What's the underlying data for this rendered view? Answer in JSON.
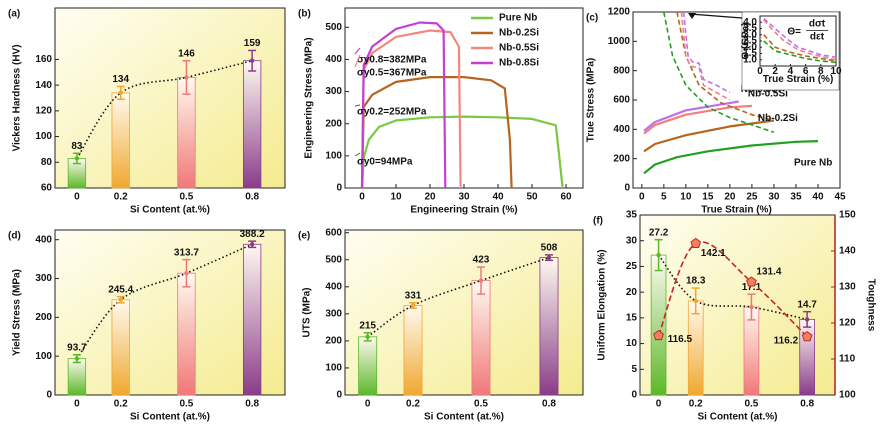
{
  "chart_data": [
    {
      "type": "bar",
      "label": "(a)",
      "ylabel": "Vickers Hardness (HV)",
      "xlabel": "Si Content (at.%)",
      "x": [
        0,
        0.2,
        0.5,
        0.8
      ],
      "xlim": [
        -0.1,
        0.95
      ],
      "xticks": [
        0,
        0.2,
        0.5,
        0.8
      ],
      "ylim": [
        60,
        200
      ],
      "yticks": [
        60,
        80,
        100,
        120,
        140,
        160
      ],
      "background": "#f4eb8e",
      "trend": true,
      "series": [
        {
          "values": [
            83,
            134,
            146,
            159
          ],
          "errors": [
            4,
            5,
            13,
            8
          ],
          "colors": [
            "#5cb82a",
            "#f0a830",
            "#f07878",
            "#8a3c8a"
          ]
        }
      ]
    },
    {
      "type": "line",
      "label": "(b)",
      "ylabel": "Engineering Stress (MPa)",
      "xlabel": "Engineering Strain (%)",
      "xlim": [
        -5,
        65
      ],
      "xticks": [
        0,
        10,
        20,
        30,
        40,
        50,
        60
      ],
      "ylim": [
        0,
        560
      ],
      "yticks": [
        0,
        100,
        200,
        300,
        400,
        500
      ],
      "legend": "upper right",
      "series": [
        {
          "name": "Pure Nb",
          "color": "#7ac943",
          "x": [
            0,
            0.5,
            2,
            5,
            10,
            20,
            30,
            40,
            50,
            57,
            58,
            59
          ],
          "values": [
            0,
            94,
            150,
            190,
            210,
            220,
            222,
            220,
            215,
            195,
            100,
            0
          ]
        },
        {
          "name": "Nb-0.2Si",
          "color": "#b5651d",
          "x": [
            0,
            0.5,
            3,
            10,
            20,
            30,
            38,
            42,
            43.5,
            44
          ],
          "values": [
            0,
            252,
            290,
            330,
            345,
            345,
            335,
            310,
            150,
            0
          ]
        },
        {
          "name": "Nb-0.5Si",
          "color": "#f4877f",
          "x": [
            0,
            0.5,
            3,
            10,
            20,
            26,
            28.5,
            29
          ],
          "values": [
            0,
            367,
            420,
            470,
            490,
            485,
            440,
            0
          ]
        },
        {
          "name": "Nb-0.8Si",
          "color": "#c33fd6",
          "x": [
            0,
            0.5,
            3,
            10,
            17,
            22,
            24,
            24.5
          ],
          "values": [
            0,
            382,
            440,
            495,
            515,
            512,
            490,
            0
          ]
        }
      ],
      "annotations": [
        {
          "text": "σy0.8=382MPa",
          "color": "#c33fd6"
        },
        {
          "text": "σy0.5=367MPa",
          "color": "#f4877f"
        },
        {
          "text": "σy0.2=252MPa",
          "color": "#b5651d"
        },
        {
          "text": "σy0=94MPa",
          "color": "#5a9e2a"
        }
      ]
    },
    {
      "type": "line",
      "label": "(c)",
      "ylabel": "True Stress (MPa)",
      "xlabel": "True Strain (%)",
      "xlim": [
        -2,
        45
      ],
      "xticks": [
        0,
        5,
        10,
        15,
        20,
        25,
        30,
        35,
        40,
        45
      ],
      "ylim": [
        0,
        1200
      ],
      "yticks": [
        0,
        200,
        400,
        600,
        800,
        1000,
        1200
      ],
      "series": [
        {
          "name": "Pure Nb",
          "color": "#22a022",
          "x": [
            0.5,
            3,
            8,
            15,
            25,
            35,
            40
          ],
          "values": [
            100,
            160,
            210,
            250,
            290,
            315,
            320
          ]
        },
        {
          "name": "Nb-0.2Si",
          "color": "#b5651d",
          "x": [
            0.5,
            3,
            10,
            20,
            30
          ],
          "values": [
            250,
            300,
            360,
            420,
            460
          ]
        },
        {
          "name": "Nb-0.5Si",
          "color": "#f08080",
          "x": [
            0.5,
            3,
            10,
            20,
            25
          ],
          "values": [
            370,
            430,
            500,
            550,
            560
          ]
        },
        {
          "name": "Nb-0.8Si",
          "color": "#c070e8",
          "x": [
            0.5,
            3,
            10,
            18,
            22
          ],
          "values": [
            390,
            450,
            530,
            570,
            590
          ]
        },
        {
          "color": "#22a022",
          "style": "dashed",
          "x": [
            5,
            7,
            10,
            15,
            20,
            25,
            30
          ],
          "values": [
            1200,
            900,
            700,
            550,
            480,
            430,
            380
          ]
        },
        {
          "color": "#b5651d",
          "style": "dashed",
          "x": [
            8,
            10,
            13,
            18,
            25,
            30
          ],
          "values": [
            1200,
            900,
            700,
            580,
            500,
            460
          ]
        },
        {
          "color": "#f08080",
          "style": "dashed",
          "x": [
            9,
            10,
            11,
            13,
            14,
            17,
            20
          ],
          "values": [
            1200,
            900,
            830,
            820,
            700,
            650,
            600
          ]
        },
        {
          "color": "#c070e8",
          "style": "dashed",
          "x": [
            9.5,
            10.5,
            11.5,
            13,
            14,
            17,
            20
          ],
          "values": [
            1200,
            900,
            860,
            850,
            740,
            700,
            650
          ]
        }
      ],
      "inset": {
        "ylabel": "Θ (GPa)",
        "xlabel": "True Strain (%)",
        "xlim": [
          0,
          10
        ],
        "xticks": [
          0,
          2,
          4,
          6,
          8,
          10
        ],
        "ylim": [
          0.5,
          4.5
        ],
        "yticks": [
          {
            "value": 1,
            "label": "1.0"
          },
          1.5,
          {
            "value": 2,
            "label": "2.0"
          },
          2.5,
          {
            "value": 3,
            "label": "3.0"
          },
          3.5,
          {
            "value": 4,
            "label": "4.0"
          }
        ],
        "annotations": [
          {
            "text": "Θ="
          },
          {
            "text": "dσt"
          },
          {
            "text": "dεt"
          }
        ],
        "series": [
          {
            "color": "#22a022",
            "style": "dashed",
            "x": [
              0.5,
              2,
              4,
              6,
              8,
              10
            ],
            "values": [
              2.5,
              1.7,
              1.4,
              1.1,
              0.9,
              0.8
            ]
          },
          {
            "color": "#b5651d",
            "style": "dashed",
            "x": [
              0.5,
              2,
              4,
              6,
              8,
              10
            ],
            "values": [
              3.0,
              2.0,
              1.6,
              1.3,
              1.1,
              0.9
            ]
          },
          {
            "color": "#f08080",
            "style": "dashed",
            "x": [
              0.5,
              1.5,
              3,
              5,
              7,
              10
            ],
            "values": [
              4.2,
              3.5,
              2.6,
              1.8,
              1.4,
              1.0
            ]
          },
          {
            "color": "#c070e8",
            "style": "dashed",
            "x": [
              0.5,
              2,
              3.5,
              5,
              8,
              10
            ],
            "values": [
              4.3,
              3.5,
              2.7,
              2.0,
              1.4,
              1.2
            ]
          }
        ]
      }
    },
    {
      "type": "bar",
      "label": "(d)",
      "ylabel": "Yield Stress (MPa)",
      "xlabel": "Si Content (at.%)",
      "x": [
        0,
        0.2,
        0.5,
        0.8
      ],
      "xlim": [
        -0.1,
        0.95
      ],
      "xticks": [
        0,
        0.2,
        0.5,
        0.8
      ],
      "ylim": [
        0,
        425
      ],
      "yticks": [
        0,
        100,
        200,
        300,
        400
      ],
      "background": "#f4eb8e",
      "trend": true,
      "series": [
        {
          "values": [
            93.7,
            245.4,
            313.7,
            388.2
          ],
          "errors": [
            10,
            8,
            35,
            8
          ],
          "colors": [
            "#5cb82a",
            "#f0a830",
            "#f07878",
            "#8a3c8a"
          ]
        }
      ]
    },
    {
      "type": "bar",
      "label": "(e)",
      "ylabel": "UTS (MPa)",
      "xlabel": "Si Content (at.%)",
      "x": [
        0,
        0.2,
        0.5,
        0.8
      ],
      "xlim": [
        -0.1,
        0.95
      ],
      "xticks": [
        0,
        0.2,
        0.5,
        0.8
      ],
      "ylim": [
        0,
        610
      ],
      "yticks": [
        0,
        100,
        200,
        300,
        400,
        500,
        600
      ],
      "background": "#f4eb8e",
      "trend": true,
      "series": [
        {
          "values": [
            215,
            331,
            423,
            508
          ],
          "errors": [
            15,
            10,
            50,
            10
          ],
          "colors": [
            "#5cb82a",
            "#f0a830",
            "#f07878",
            "#8a3c8a"
          ]
        }
      ]
    },
    {
      "type": "bar",
      "label": "(f)",
      "ylabel": "Uniform Elongation (%)",
      "y2label": "Toughness",
      "xlabel": "Si Content (at.%)",
      "x": [
        0,
        0.2,
        0.5,
        0.8
      ],
      "xlim": [
        -0.1,
        0.95
      ],
      "xticks": [
        0,
        0.2,
        0.5,
        0.8
      ],
      "ylim": [
        0,
        35
      ],
      "yticks": [
        0,
        5,
        10,
        15,
        20,
        25,
        30,
        35
      ],
      "y2lim": [
        100,
        150
      ],
      "y2ticks": [
        100,
        110,
        120,
        130,
        140,
        150
      ],
      "y2color": "#b02020",
      "background": "#f4eb8e",
      "trend": true,
      "series": [
        {
          "values": [
            27.2,
            18.3,
            17.1,
            14.7
          ],
          "errors": [
            3,
            2.5,
            2.5,
            1.5
          ],
          "colors": [
            "#5cb82a",
            "#f0a830",
            "#f07878",
            "#8a3c8a"
          ],
          "label_color": "#111111"
        },
        {
          "axis": "y2",
          "values": [
            116.5,
            142.1,
            131.4,
            116.2
          ],
          "color": "#c0282a",
          "style": "dashed",
          "marker": "pentagon",
          "label_color": "#a01818"
        }
      ]
    }
  ]
}
